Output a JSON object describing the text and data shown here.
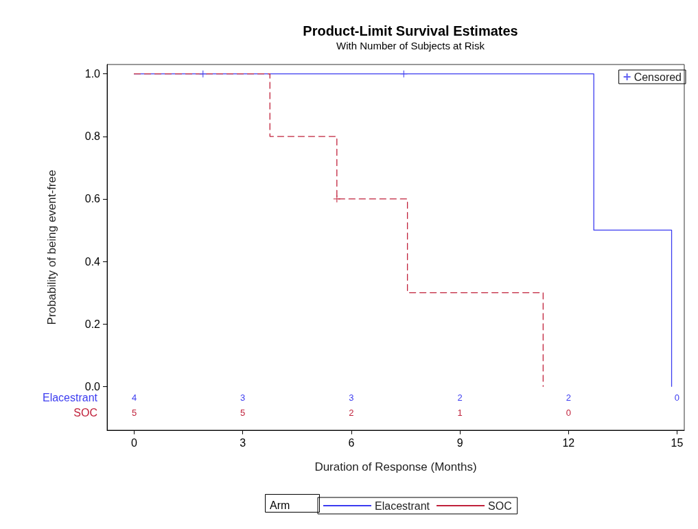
{
  "chart_data": {
    "type": "step",
    "title": "Product-Limit Survival Estimates",
    "subtitle": "With Number of Subjects at Risk",
    "xlabel": "Duration of Response (Months)",
    "ylabel": "Probability of being event-free",
    "legend_title": "Arm",
    "xlim": [
      -0.75,
      15.2
    ],
    "xticks": [
      0,
      3,
      6,
      9,
      12,
      15
    ],
    "ylim": [
      -0.14,
      1.03
    ],
    "yticks": [
      {
        "value": 0,
        "label": "0.0"
      },
      0.2,
      0.4,
      0.6,
      0.8,
      {
        "value": 1,
        "label": "1.0"
      }
    ],
    "grid": false,
    "legend": "bottom",
    "series": [
      {
        "name": "Elacestrant",
        "color": "#3b3bf0",
        "line_style": "solid",
        "x": [
          0,
          12.7,
          14.85
        ],
        "values": [
          1,
          0.5,
          0
        ]
      },
      {
        "name": "SOC",
        "color": "#c0203a",
        "line_style": "dashed",
        "x": [
          0,
          3.75,
          5.6,
          7.55,
          11.3
        ],
        "values": [
          1,
          0.8,
          0.6,
          0.3,
          0
        ]
      },
      {
        "name": "Censored",
        "type": "scatter",
        "marker": "cross",
        "color": "#3b3bf0",
        "x": [
          1.9,
          7.45,
          5.6
        ],
        "values": [
          1,
          1,
          0.6
        ],
        "colors": [
          "#3b3bf0",
          "#3b3bf0",
          "#c0203a"
        ]
      }
    ],
    "annotations": [
      "4",
      "3",
      "3",
      "2",
      "2",
      "0",
      "5",
      "5",
      "2",
      "1",
      "0"
    ]
  }
}
